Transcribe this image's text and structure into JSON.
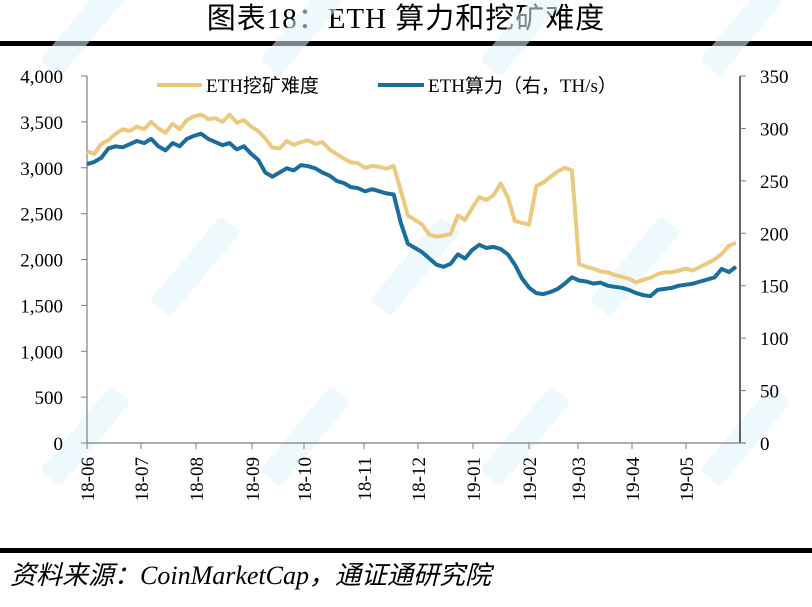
{
  "title": "图表18：ETH 算力和挖矿难度",
  "source": "资料来源：CoinMarketCap，通证通研究院",
  "watermark": "通证通",
  "colors": {
    "difficulty": "#EBC97F",
    "hashrate": "#1B6E9A",
    "axis": "#000000",
    "watermark": "#DFF4FA"
  },
  "legend": {
    "difficulty_label": "ETH挖矿难度",
    "hashrate_label": "ETH算力（右，TH/s）"
  },
  "chart_data": {
    "type": "line",
    "title": "图表18：ETH 算力和挖矿难度",
    "xlabel": "",
    "ylabel": "",
    "y2label": "",
    "ylim": [
      0,
      4000
    ],
    "y2lim": [
      0,
      350
    ],
    "yticks": [
      "0",
      "500",
      "1,000",
      "1,500",
      "2,000",
      "2,500",
      "3,000",
      "3,500",
      "4,000"
    ],
    "y2ticks": [
      "0",
      "50",
      "100",
      "150",
      "200",
      "250",
      "300",
      "350"
    ],
    "xticks": [
      "18-06",
      "18-07",
      "18-08",
      "18-09",
      "18-10",
      "18-11",
      "18-12",
      "19-01",
      "19-02",
      "19-03",
      "19-04",
      "19-05"
    ],
    "grid": false,
    "legend_position": "top",
    "x": [
      "18-06-01",
      "18-06-05",
      "18-06-09",
      "18-06-13",
      "18-06-17",
      "18-06-21",
      "18-06-25",
      "18-06-29",
      "18-07-03",
      "18-07-07",
      "18-07-11",
      "18-07-15",
      "18-07-19",
      "18-07-23",
      "18-07-27",
      "18-07-31",
      "18-08-04",
      "18-08-08",
      "18-08-12",
      "18-08-16",
      "18-08-20",
      "18-08-24",
      "18-08-28",
      "18-09-01",
      "18-09-05",
      "18-09-09",
      "18-09-13",
      "18-09-17",
      "18-09-21",
      "18-09-25",
      "18-09-29",
      "18-10-03",
      "18-10-07",
      "18-10-11",
      "18-10-15",
      "18-10-19",
      "18-10-23",
      "18-10-27",
      "18-10-31",
      "18-11-04",
      "18-11-08",
      "18-11-12",
      "18-11-16",
      "18-11-20",
      "18-11-24",
      "18-11-28",
      "18-12-02",
      "18-12-06",
      "18-12-10",
      "18-12-14",
      "18-12-18",
      "18-12-22",
      "18-12-26",
      "18-12-30",
      "19-01-03",
      "19-01-07",
      "19-01-11",
      "19-01-15",
      "19-01-19",
      "19-01-23",
      "19-01-27",
      "19-01-31",
      "19-02-04",
      "19-02-08",
      "19-02-12",
      "19-02-16",
      "19-02-20",
      "19-02-24",
      "19-02-28",
      "19-03-04",
      "19-03-08",
      "19-03-12",
      "19-03-16",
      "19-03-20",
      "19-03-24",
      "19-03-28",
      "19-04-01",
      "19-04-05",
      "19-04-09",
      "19-04-13",
      "19-04-17",
      "19-04-21",
      "19-04-25",
      "19-04-29",
      "19-05-03",
      "19-05-07",
      "19-05-11",
      "19-05-15",
      "19-05-19",
      "19-05-23",
      "19-05-27",
      "19-05-31"
    ],
    "series": [
      {
        "name": "ETH挖矿难度",
        "axis": "left",
        "color": "#EBC97F",
        "values": [
          3180,
          3150,
          3260,
          3300,
          3370,
          3420,
          3400,
          3450,
          3420,
          3500,
          3430,
          3380,
          3480,
          3420,
          3520,
          3560,
          3580,
          3530,
          3540,
          3500,
          3580,
          3490,
          3520,
          3450,
          3400,
          3320,
          3220,
          3210,
          3290,
          3250,
          3280,
          3300,
          3260,
          3280,
          3200,
          3150,
          3100,
          3060,
          3050,
          3000,
          3020,
          3010,
          2990,
          3020,
          2750,
          2480,
          2430,
          2380,
          2270,
          2250,
          2260,
          2280,
          2480,
          2430,
          2560,
          2680,
          2650,
          2700,
          2830,
          2680,
          2420,
          2400,
          2380,
          2800,
          2840,
          2900,
          2960,
          3000,
          2970,
          1950,
          1920,
          1900,
          1870,
          1860,
          1830,
          1810,
          1790,
          1750,
          1780,
          1800,
          1840,
          1860,
          1860,
          1880,
          1900,
          1880,
          1920,
          1960,
          2000,
          2060,
          2150,
          2180
        ]
      },
      {
        "name": "ETH算力（右，TH/s）",
        "axis": "right",
        "color": "#1B6E9A",
        "values": [
          266,
          268,
          272,
          281,
          283,
          282,
          285,
          288,
          286,
          290,
          283,
          279,
          286,
          283,
          290,
          293,
          295,
          290,
          287,
          284,
          286,
          280,
          283,
          276,
          270,
          258,
          254,
          258,
          262,
          260,
          265,
          264,
          262,
          258,
          255,
          250,
          248,
          244,
          243,
          240,
          242,
          240,
          238,
          237,
          210,
          190,
          186,
          182,
          176,
          170,
          168,
          171,
          180,
          176,
          184,
          189,
          186,
          187,
          185,
          180,
          170,
          157,
          148,
          143,
          142,
          144,
          147,
          152,
          158,
          155,
          154,
          152,
          153,
          150,
          149,
          148,
          146,
          143,
          141,
          140,
          146,
          147,
          148,
          150,
          151,
          152,
          154,
          156,
          158,
          166,
          163,
          168
        ]
      }
    ]
  }
}
